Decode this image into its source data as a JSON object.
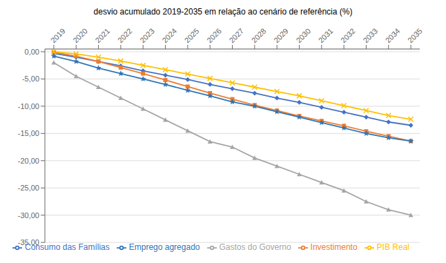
{
  "chart_data": {
    "type": "line",
    "title": "desvio acumulado 2019-2035 em relação ao cenário de referência (%)",
    "x": [
      2019,
      2020,
      2021,
      2022,
      2023,
      2024,
      2025,
      2026,
      2027,
      2028,
      2029,
      2030,
      2031,
      2032,
      2033,
      2034,
      2035
    ],
    "series": [
      {
        "name": "Consumo das Famílias",
        "color": "#4472C4",
        "marker": "diamond",
        "values": [
          -0.3,
          -1.0,
          -1.8,
          -2.6,
          -3.5,
          -4.3,
          -5.1,
          -6.0,
          -6.8,
          -7.6,
          -8.5,
          -9.3,
          -10.2,
          -11.1,
          -12.0,
          -12.9,
          -13.5
        ]
      },
      {
        "name": "Investimento",
        "color": "#ED7D31",
        "marker": "square",
        "values": [
          -0.1,
          -0.8,
          -1.8,
          -2.9,
          -4.0,
          -5.2,
          -6.4,
          -7.6,
          -8.7,
          -9.8,
          -10.8,
          -11.8,
          -12.7,
          -13.6,
          -14.6,
          -15.5,
          -16.4
        ]
      },
      {
        "name": "Gastos do Governo",
        "color": "#A5A5A5",
        "marker": "triangle",
        "values": [
          -2.0,
          -4.5,
          -6.5,
          -8.5,
          -10.5,
          -12.5,
          -14.5,
          -16.5,
          -17.5,
          -19.5,
          -21.0,
          -22.5,
          -24.0,
          -25.5,
          -27.5,
          -29.0,
          -30.0
        ]
      },
      {
        "name": "PIB Real",
        "color": "#FFC000",
        "marker": "x",
        "values": [
          0.0,
          -0.4,
          -1.0,
          -1.7,
          -2.5,
          -3.3,
          -4.1,
          -4.9,
          -5.7,
          -6.5,
          -7.3,
          -8.1,
          -9.0,
          -9.9,
          -10.8,
          -11.7,
          -12.4
        ]
      },
      {
        "name": "Emprego agregado",
        "color": "#2E75B6",
        "marker": "star",
        "values": [
          -0.8,
          -1.8,
          -3.0,
          -4.0,
          -5.0,
          -6.0,
          -7.1,
          -8.1,
          -9.2,
          -10.0,
          -11.0,
          -12.0,
          -13.0,
          -14.0,
          -15.0,
          -15.8,
          -16.4
        ]
      }
    ],
    "xlim": [
      2018.6,
      2035.4
    ],
    "xticks": [
      2019,
      2020,
      2021,
      2022,
      2023,
      2024,
      2025,
      2026,
      2027,
      2028,
      2029,
      2030,
      2031,
      2032,
      2033,
      2034,
      2035
    ],
    "ylim": [
      -35,
      0.5
    ],
    "yticks": [
      {
        "value": 0,
        "label": "0,00"
      },
      {
        "value": -5,
        "label": "-5,00"
      },
      {
        "value": -10,
        "label": "-10,00"
      },
      {
        "value": -15,
        "label": "-15,00"
      },
      {
        "value": -20,
        "label": "-20,00"
      },
      {
        "value": -25,
        "label": "-25,00"
      },
      {
        "value": -30,
        "label": "-30,00"
      },
      {
        "value": -35,
        "label": "-35,00"
      }
    ],
    "grid": "y",
    "legend": "bottom"
  }
}
